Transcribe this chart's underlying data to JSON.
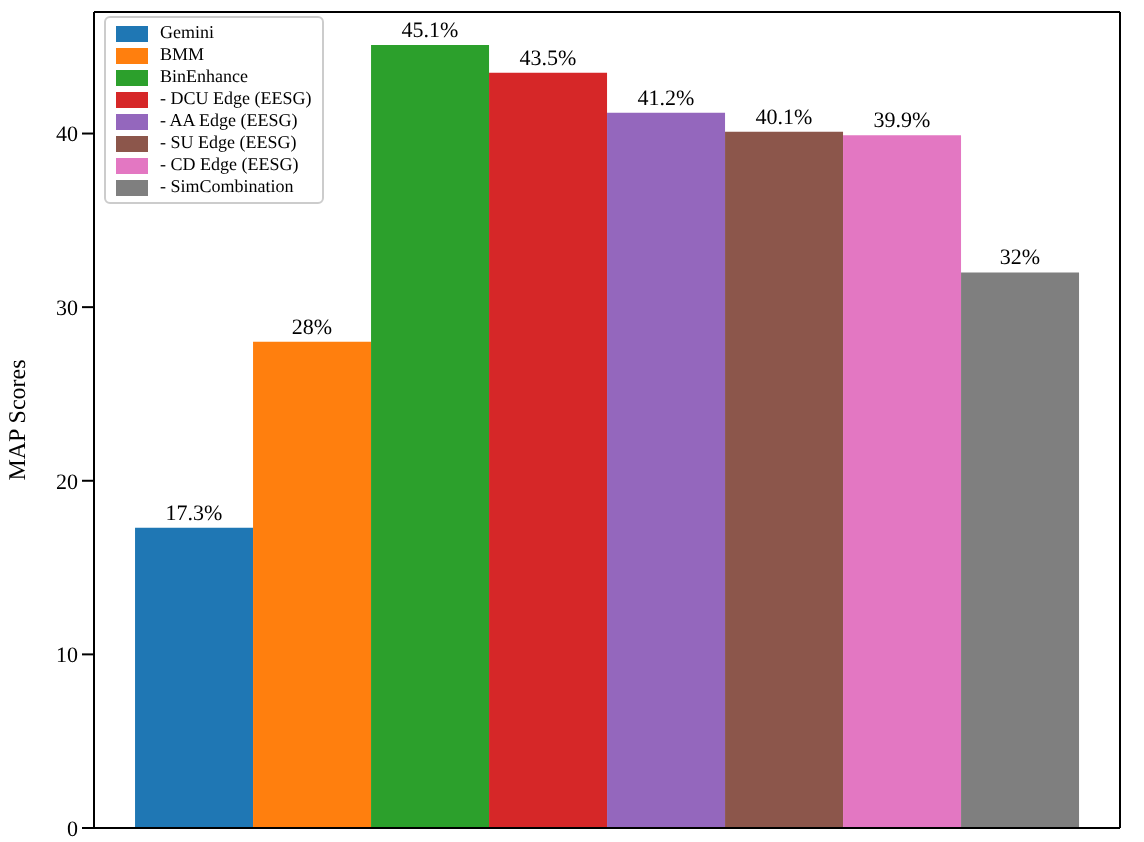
{
  "chart_data": {
    "type": "bar",
    "ylabel": "MAP Scores",
    "categories": [
      null
    ],
    "ylim": [
      0,
      47
    ],
    "yticks": [
      0,
      10,
      20,
      30,
      40
    ],
    "grid": false,
    "legend": "top left",
    "series": [
      {
        "name": "Gemini",
        "color": "#1f77b4",
        "values": [
          17.3
        ],
        "value_labels": [
          "17.3%"
        ]
      },
      {
        "name": "BMM",
        "color": "#ff7f0e",
        "values": [
          28
        ],
        "value_labels": [
          "28%"
        ]
      },
      {
        "name": "BinEnhance",
        "color": "#2ca02c",
        "values": [
          45.1
        ],
        "value_labels": [
          "45.1%"
        ]
      },
      {
        "name": "- DCU Edge (EESG)",
        "color": "#d62728",
        "values": [
          43.5
        ],
        "value_labels": [
          "43.5%"
        ]
      },
      {
        "name": "- AA Edge (EESG)",
        "color": "#9467bd",
        "values": [
          41.2
        ],
        "value_labels": [
          "41.2%"
        ]
      },
      {
        "name": "- SU Edge (EESG)",
        "color": "#8c564b",
        "values": [
          40.1
        ],
        "value_labels": [
          "40.1%"
        ]
      },
      {
        "name": "- CD Edge (EESG)",
        "color": "#e377c2",
        "values": [
          39.9
        ],
        "value_labels": [
          "39.9%"
        ]
      },
      {
        "name": "- SimCombination",
        "color": "#7f7f7f",
        "values": [
          32
        ],
        "value_labels": [
          "32%"
        ]
      }
    ]
  }
}
